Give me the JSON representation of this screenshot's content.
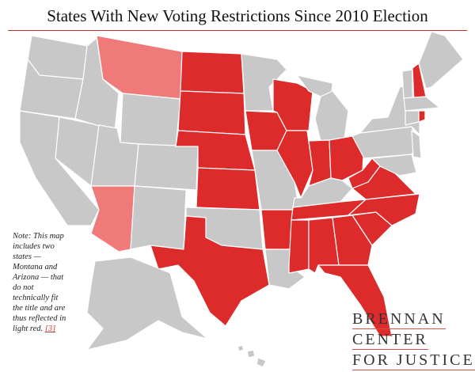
{
  "title": "States With New Voting Restrictions Since 2010 Election",
  "colors": {
    "restricted": "#dd2a2a",
    "partial": "#f07a7a",
    "none": "#c8c8c8",
    "accent": "#c0392b"
  },
  "note": {
    "text": "Note: This map includes two states — Montana and Arizona — that do not technically fit the title and are thus reflected in light red.",
    "footnote": "[3]"
  },
  "logo": {
    "line1": "BRENNAN",
    "line2": "CENTER",
    "line3": "FOR JUSTICE"
  },
  "states": [
    {
      "abbr": "WA",
      "status": "none"
    },
    {
      "abbr": "OR",
      "status": "none"
    },
    {
      "abbr": "CA",
      "status": "none"
    },
    {
      "abbr": "NV",
      "status": "none"
    },
    {
      "abbr": "ID",
      "status": "none"
    },
    {
      "abbr": "MT",
      "status": "partial"
    },
    {
      "abbr": "WY",
      "status": "none"
    },
    {
      "abbr": "UT",
      "status": "none"
    },
    {
      "abbr": "CO",
      "status": "none"
    },
    {
      "abbr": "AZ",
      "status": "partial"
    },
    {
      "abbr": "NM",
      "status": "none"
    },
    {
      "abbr": "ND",
      "status": "restricted"
    },
    {
      "abbr": "SD",
      "status": "restricted"
    },
    {
      "abbr": "NE",
      "status": "restricted"
    },
    {
      "abbr": "KS",
      "status": "restricted"
    },
    {
      "abbr": "OK",
      "status": "none"
    },
    {
      "abbr": "TX",
      "status": "restricted"
    },
    {
      "abbr": "MN",
      "status": "none"
    },
    {
      "abbr": "IA",
      "status": "restricted"
    },
    {
      "abbr": "MO",
      "status": "none"
    },
    {
      "abbr": "AR",
      "status": "restricted"
    },
    {
      "abbr": "LA",
      "status": "none"
    },
    {
      "abbr": "WI",
      "status": "restricted"
    },
    {
      "abbr": "IL",
      "status": "restricted"
    },
    {
      "abbr": "MI",
      "status": "none"
    },
    {
      "abbr": "IN",
      "status": "restricted"
    },
    {
      "abbr": "OH",
      "status": "restricted"
    },
    {
      "abbr": "KY",
      "status": "none"
    },
    {
      "abbr": "TN",
      "status": "restricted"
    },
    {
      "abbr": "MS",
      "status": "restricted"
    },
    {
      "abbr": "AL",
      "status": "restricted"
    },
    {
      "abbr": "GA",
      "status": "restricted"
    },
    {
      "abbr": "FL",
      "status": "restricted"
    },
    {
      "abbr": "SC",
      "status": "restricted"
    },
    {
      "abbr": "NC",
      "status": "restricted"
    },
    {
      "abbr": "VA",
      "status": "restricted"
    },
    {
      "abbr": "WV",
      "status": "restricted"
    },
    {
      "abbr": "PA",
      "status": "none"
    },
    {
      "abbr": "NY",
      "status": "none"
    },
    {
      "abbr": "MD",
      "status": "none"
    },
    {
      "abbr": "NJ",
      "status": "none"
    },
    {
      "abbr": "VT",
      "status": "none"
    },
    {
      "abbr": "NH",
      "status": "restricted"
    },
    {
      "abbr": "ME",
      "status": "none"
    },
    {
      "abbr": "MA",
      "status": "none"
    },
    {
      "abbr": "CT",
      "status": "none"
    },
    {
      "abbr": "RI",
      "status": "restricted"
    },
    {
      "abbr": "AK",
      "status": "none"
    },
    {
      "abbr": "HI",
      "status": "none"
    }
  ]
}
